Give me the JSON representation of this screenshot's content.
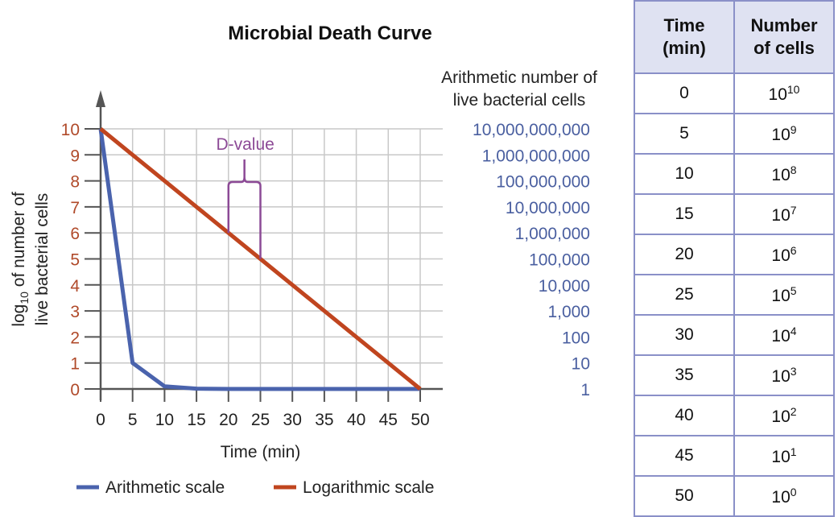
{
  "chart_data": {
    "type": "line",
    "title": "Microbial Death Curve",
    "xlabel": "Time (min)",
    "ylabel": "log10 of number of live bacterial cells",
    "ylabel_parts": {
      "line1_a": "log",
      "line1_sub": "10",
      "line1_b": " of number of",
      "line2": "live bacterial cells"
    },
    "secondary_ylabel": [
      "Arithmetic number of",
      "live bacterial cells"
    ],
    "xlim": [
      0,
      50
    ],
    "ylim": [
      0,
      10
    ],
    "grid": true,
    "legend_placement": "bottom",
    "x": [
      0,
      5,
      10,
      15,
      20,
      25,
      30,
      35,
      40,
      45,
      50
    ],
    "x_ticks": [
      "0",
      "5",
      "10",
      "15",
      "20",
      "25",
      "30",
      "35",
      "40",
      "45",
      "50"
    ],
    "y_ticks": [
      "0",
      "1",
      "2",
      "3",
      "4",
      "5",
      "6",
      "7",
      "8",
      "9",
      "10"
    ],
    "secondary_y_ticks": [
      "1",
      "10",
      "100",
      "1,000",
      "10,000",
      "100,000",
      "1,000,000",
      "10,000,000",
      "100,000,000",
      "1,000,000,000",
      "10,000,000,000"
    ],
    "series": [
      {
        "name": "Arithmetic scale",
        "color": "#4a63ad",
        "values": [
          10,
          1,
          0.1,
          0.01,
          0.001,
          0.0001,
          1e-05,
          1e-06,
          1e-07,
          1e-08,
          1e-09
        ]
      },
      {
        "name": "Logarithmic scale",
        "color": "#c0451f",
        "values": [
          10,
          9,
          8,
          7,
          6,
          5,
          4,
          3,
          2,
          1,
          0
        ]
      }
    ],
    "annotation": {
      "text": "D-value",
      "x_range": [
        20,
        25
      ],
      "color": "#8c4a96"
    },
    "colors": {
      "left_ticks": "#b04a2a",
      "right_ticks": "#4a5fa0",
      "grid": "#c8c8c8",
      "axis": "#555555"
    }
  },
  "table": {
    "headers": [
      [
        "Time",
        "(min)"
      ],
      [
        "Number",
        "of cells"
      ]
    ],
    "rows": [
      {
        "time": "0",
        "base": "10",
        "exp": "10"
      },
      {
        "time": "5",
        "base": "10",
        "exp": "9"
      },
      {
        "time": "10",
        "base": "10",
        "exp": "8"
      },
      {
        "time": "15",
        "base": "10",
        "exp": "7"
      },
      {
        "time": "20",
        "base": "10",
        "exp": "6"
      },
      {
        "time": "25",
        "base": "10",
        "exp": "5"
      },
      {
        "time": "30",
        "base": "10",
        "exp": "4"
      },
      {
        "time": "35",
        "base": "10",
        "exp": "3"
      },
      {
        "time": "40",
        "base": "10",
        "exp": "2"
      },
      {
        "time": "45",
        "base": "10",
        "exp": "1"
      },
      {
        "time": "50",
        "base": "10",
        "exp": "0"
      }
    ]
  }
}
